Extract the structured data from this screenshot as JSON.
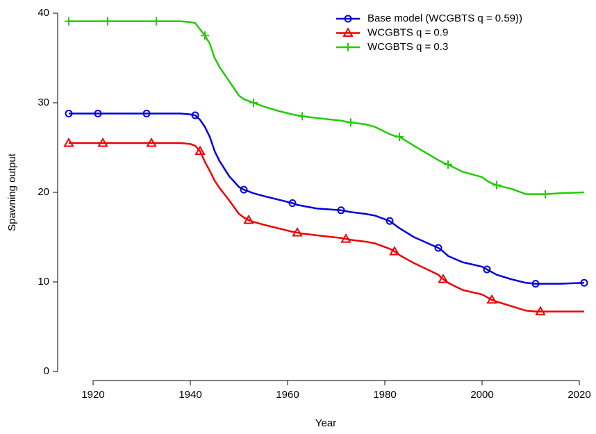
{
  "chart_data": {
    "type": "line",
    "x_label": "Year",
    "y_label": "Spawning output",
    "x": [
      1915,
      1921,
      1922,
      1923,
      1931,
      1932,
      1933,
      1938,
      1940,
      1941,
      1942,
      1943,
      1944,
      1945,
      1946,
      1948,
      1950,
      1951,
      1952,
      1953,
      1955,
      1958,
      1961,
      1962,
      1963,
      1966,
      1971,
      1972,
      1973,
      1976,
      1978,
      1981,
      1982,
      1983,
      1986,
      1991,
      1992,
      1993,
      1996,
      2000,
      2001,
      2002,
      2003,
      2006,
      2009,
      2011,
      2012,
      2013,
      2016,
      2021
    ],
    "series": [
      {
        "name": "Base model (WCGBTS q = 0.59))",
        "color": "#0000dd",
        "marker": "circle",
        "values": [
          28.8,
          28.8,
          28.8,
          28.8,
          28.8,
          28.8,
          28.8,
          28.8,
          28.7,
          28.6,
          28.1,
          27.3,
          26.2,
          24.6,
          23.5,
          21.8,
          20.6,
          20.3,
          20.1,
          19.9,
          19.6,
          19.2,
          18.8,
          18.6,
          18.5,
          18.2,
          18.0,
          17.9,
          17.8,
          17.6,
          17.4,
          16.8,
          16.4,
          16.0,
          15.0,
          13.8,
          13.4,
          12.9,
          12.2,
          11.7,
          11.4,
          11.1,
          10.8,
          10.3,
          9.9,
          9.8,
          9.8,
          9.8,
          9.8,
          9.9
        ]
      },
      {
        "name": "WCGBTS q = 0.9",
        "color": "#ee0000",
        "marker": "triangle",
        "values": [
          25.5,
          25.5,
          25.5,
          25.5,
          25.5,
          25.5,
          25.5,
          25.5,
          25.4,
          25.2,
          24.6,
          23.4,
          22.4,
          21.3,
          20.5,
          19.1,
          17.6,
          17.2,
          16.9,
          16.7,
          16.4,
          16.0,
          15.6,
          15.5,
          15.4,
          15.2,
          14.9,
          14.8,
          14.7,
          14.5,
          14.3,
          13.7,
          13.4,
          13.0,
          12.1,
          10.8,
          10.3,
          9.9,
          9.1,
          8.6,
          8.3,
          8.0,
          7.8,
          7.3,
          6.8,
          6.7,
          6.7,
          6.7,
          6.7,
          6.7
        ]
      },
      {
        "name": "WCGBTS q = 0.3",
        "color": "#22cc00",
        "marker": "plus",
        "values": [
          39.1,
          39.1,
          39.1,
          39.1,
          39.1,
          39.1,
          39.1,
          39.1,
          39.0,
          38.9,
          38.2,
          37.5,
          36.6,
          35.0,
          34.0,
          32.4,
          30.8,
          30.4,
          30.2,
          30.0,
          29.6,
          29.1,
          28.7,
          28.6,
          28.5,
          28.3,
          28.0,
          27.9,
          27.8,
          27.6,
          27.3,
          26.5,
          26.3,
          26.2,
          25.2,
          23.6,
          23.3,
          23.1,
          22.3,
          21.7,
          21.3,
          21.0,
          20.8,
          20.4,
          19.8,
          19.8,
          19.8,
          19.8,
          19.9,
          20.0
        ]
      }
    ],
    "xlim": [
      1914,
      2021
    ],
    "ylim": [
      0,
      40
    ],
    "xticks": [
      1920,
      1940,
      1960,
      1980,
      2000,
      2020
    ],
    "yticks": [
      0,
      10,
      20,
      30,
      40
    ],
    "grid": false,
    "legend": "top-right"
  }
}
